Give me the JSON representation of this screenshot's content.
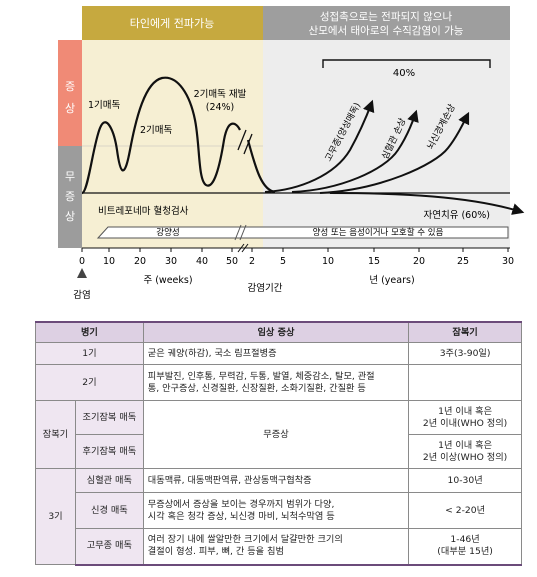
{
  "figure": {
    "band_left": "타인에게 전파가능",
    "band_right_line1": "성접촉으로는 전파되지 않으나",
    "band_right_line2": "산모에서 태아로의 수직감염이 가능",
    "side_symptomatic": "증 상",
    "side_asymptomatic": "무 증 상",
    "label_stage1": "1기매독",
    "label_stage2": "2기매독",
    "label_relapse_line1": "2기매독 재발",
    "label_relapse_line2": "(24%)",
    "label_percent": "40%",
    "label_gumma": "고무종(양성매독)",
    "label_cardio": "심혈관 손상",
    "label_neuro": "뇌신경계손상",
    "label_serology": "비트레포네마 혈청검사",
    "label_cure": "자연치유 (60%)",
    "bar_positive": "강양성",
    "bar_pos_neg": "양성 또는 음성이거나 모호할 수 있음",
    "ticks_weeks": [
      "0",
      "10",
      "20",
      "30",
      "40",
      "50",
      "2"
    ],
    "ticks_years": [
      "5",
      "10",
      "15",
      "20",
      "25",
      "30"
    ],
    "unit_weeks": "주 (weeks)",
    "unit_years": "년 (years)",
    "axis_title": "감염기간",
    "infection_label": "감염",
    "colors": {
      "band_left": "#c6a93f",
      "band_right": "#9e9e9e",
      "bg_left": "#f6efd3",
      "bg_right": "#ededed",
      "side_top": "#f08a76",
      "side_bottom": "#9c9c9c",
      "table_header": "#ddd0e3"
    }
  },
  "table": {
    "headers": {
      "stage": "병기",
      "symptom": "임상 증상",
      "incubation": "잠복기"
    },
    "rows": {
      "s1": {
        "stage": "1기",
        "symptom": "굳은 궤양(하감), 국소 림프절병증",
        "incubation": "3주(3-90일)"
      },
      "s2": {
        "stage": "2기",
        "symptom_line1": "피부발진, 인후통, 무력감, 두통, 발열, 체중감소, 탈모, 관절",
        "symptom_line2": "통, 안구증상, 신경질환, 신장질환, 소화기질환, 간질환 등",
        "incubation": ""
      },
      "latent": {
        "stage": "잠복기",
        "early_sub": "조기잠복 매독",
        "late_sub": "후기잠복 매독",
        "symptom": "무증상",
        "early_inc_line1": "1년 이내 혹은",
        "early_inc_line2": "2년 이내(WHO 정의)",
        "late_inc_line1": "1년 이내 혹은",
        "late_inc_line2": "2년 이상(WHO 정의)"
      },
      "s3": {
        "stage": "3기",
        "cardio_sub": "심혈관 매독",
        "cardio_symptom": "대동맥류, 대동맥판역류, 관상동맥구협착증",
        "cardio_inc": "10-30년",
        "neuro_sub": "신경 매독",
        "neuro_symptom_line1": "무증상에서 증상을 보이는 경우까지 범위가 다양,",
        "neuro_symptom_line2": "시각 혹은 청각 증상, 뇌신경 마비, 뇌척수막염 등",
        "neuro_inc": "< 2-20년",
        "gumma_sub": "고무종 매독",
        "gumma_symptom_line1": "여러 장기 내에 쌀알만한 크기에서 달걀만한 크기의",
        "gumma_symptom_line2": "결절이 형성. 피부, 뼈, 간 등을 침범",
        "gumma_inc_line1": "1-46년",
        "gumma_inc_line2": "(대부분 15년)"
      }
    }
  }
}
